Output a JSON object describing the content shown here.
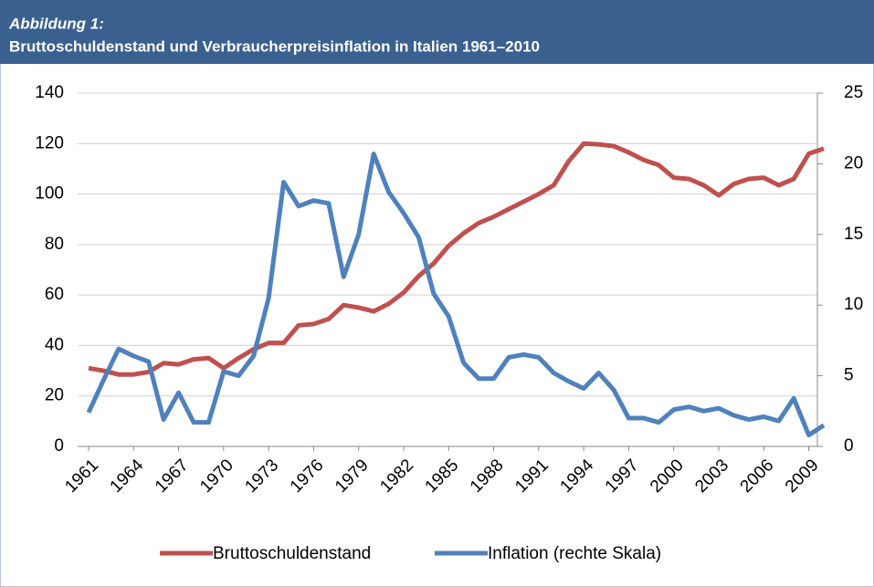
{
  "chart_data": {
    "type": "line",
    "label": "Abbildung 1:",
    "title": "Bruttoschuldenstand und Verbraucherpreisinflation in Italien 1961–2010",
    "x": [
      1961,
      1962,
      1963,
      1964,
      1965,
      1966,
      1967,
      1968,
      1969,
      1970,
      1971,
      1972,
      1973,
      1974,
      1975,
      1976,
      1977,
      1978,
      1979,
      1980,
      1981,
      1982,
      1983,
      1984,
      1985,
      1986,
      1987,
      1988,
      1989,
      1990,
      1991,
      1992,
      1993,
      1994,
      1995,
      1996,
      1997,
      1998,
      1999,
      2000,
      2001,
      2002,
      2003,
      2004,
      2005,
      2006,
      2007,
      2008,
      2009,
      2010
    ],
    "xlim": [
      1961,
      2010
    ],
    "xticks": [
      1961,
      1964,
      1967,
      1970,
      1973,
      1976,
      1979,
      1982,
      1985,
      1988,
      1991,
      1994,
      1997,
      2000,
      2003,
      2006,
      2009
    ],
    "ylim": [
      0,
      140
    ],
    "yticks": [
      0,
      20,
      40,
      60,
      80,
      100,
      120,
      140
    ],
    "y2lim": [
      0,
      25
    ],
    "y2ticks": [
      0,
      5,
      10,
      15,
      20,
      25
    ],
    "grid": true,
    "legend": "bottom",
    "series": [
      {
        "name": "Bruttoschuldenstand",
        "color": "#c0504d",
        "values": [
          31,
          30,
          28.5,
          28.5,
          29.5,
          33,
          32.5,
          34.5,
          35,
          31,
          35,
          38.5,
          41,
          41,
          48,
          48.5,
          50.5,
          56,
          55,
          53.5,
          56.5,
          61,
          67.5,
          72.5,
          79.5,
          84.5,
          88.5,
          91,
          94,
          97,
          100,
          103.5,
          113,
          120,
          119.7,
          119,
          116.5,
          113.5,
          111.5,
          106.5,
          106,
          103.5,
          99.5,
          104,
          106,
          106.5,
          103.5,
          106,
          116,
          118
        ]
      },
      {
        "name": "Inflation (rechte Skala)",
        "color": "#4f81bd",
        "axis": "y2",
        "values": [
          2.4,
          4.7,
          6.9,
          6.4,
          6.0,
          1.9,
          3.8,
          1.7,
          1.7,
          5.3,
          5.0,
          6.4,
          10.5,
          18.7,
          17.0,
          17.4,
          17.2,
          12.0,
          15.0,
          20.7,
          18.0,
          16.5,
          14.8,
          10.8,
          9.2,
          5.9,
          4.8,
          4.8,
          6.3,
          6.5,
          6.3,
          5.2,
          4.6,
          4.1,
          5.2,
          4.0,
          2.0,
          2.0,
          1.7,
          2.6,
          2.8,
          2.5,
          2.7,
          2.2,
          1.9,
          2.1,
          1.8,
          3.4,
          0.8,
          1.5
        ]
      }
    ]
  }
}
